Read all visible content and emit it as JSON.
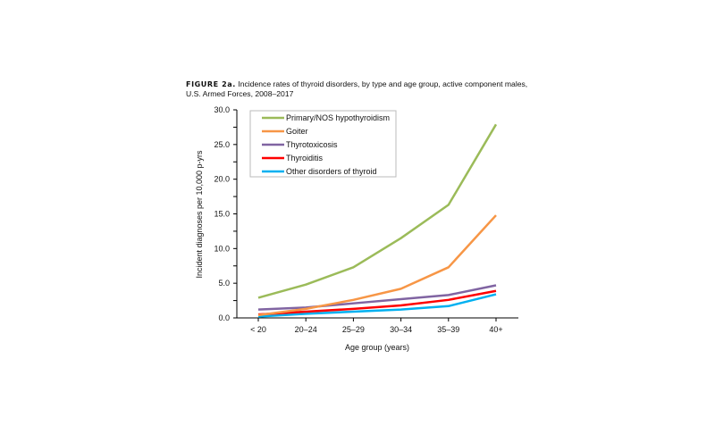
{
  "chart_data": {
    "type": "line",
    "title_label": "FIGURE 2a.",
    "title": "Incidence rates of thyroid disorders, by type and age group, active component males, U.S. Armed Forces, 2008–2017",
    "xlabel": "Age group (years)",
    "ylabel": "Incident diagnoses per 10,000 p-yrs",
    "categories": [
      "< 20",
      "20–24",
      "25–29",
      "30–34",
      "35–39",
      "40+"
    ],
    "ylim": [
      0,
      30
    ],
    "yticks": [
      "0.0",
      "5.0",
      "10.0",
      "15.0",
      "20.0",
      "25.0",
      "30.0"
    ],
    "grid": false,
    "legend_position": "top-left",
    "series": [
      {
        "name": "Primary/NOS hypothyroidism",
        "color": "#9BBB59",
        "values": [
          2.9,
          4.8,
          7.3,
          11.5,
          16.3,
          27.9
        ]
      },
      {
        "name": "Goiter",
        "color": "#F79646",
        "values": [
          0.4,
          1.3,
          2.6,
          4.2,
          7.3,
          14.8
        ]
      },
      {
        "name": "Thyrotoxicosis",
        "color": "#8064A2",
        "values": [
          1.2,
          1.5,
          2.1,
          2.7,
          3.3,
          4.7
        ]
      },
      {
        "name": "Thyroiditis",
        "color": "#FF0000",
        "values": [
          0.5,
          0.9,
          1.3,
          1.8,
          2.6,
          3.9
        ]
      },
      {
        "name": "Other disorders of thyroid",
        "color": "#00B0F0",
        "values": [
          0.2,
          0.6,
          0.9,
          1.2,
          1.7,
          3.4
        ]
      }
    ]
  }
}
